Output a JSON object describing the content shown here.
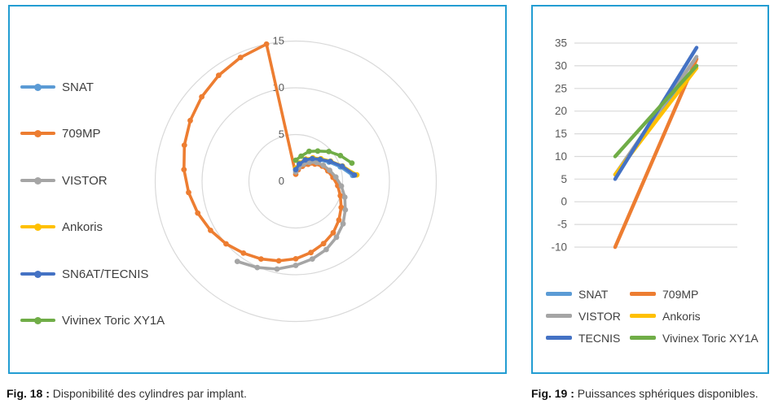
{
  "accent_color": "#239DD2",
  "grid_color": "#D9D9D9",
  "axis_text_color": "#595959",
  "fig18": {
    "caption_label": "Fig. 18 :",
    "caption_text": " Disponibilité des cylindres par implant.",
    "legend": [
      {
        "label": "SNAT",
        "color": "#5B9BD5"
      },
      {
        "label": "709MP",
        "color": "#ED7D31"
      },
      {
        "label": "VISTOR",
        "color": "#A5A5A5"
      },
      {
        "label": "Ankoris",
        "color": "#FFC000"
      },
      {
        "label": "SN6AT/TECNIS",
        "color": "#4472C4"
      },
      {
        "label": "Vivinex Toric XY1A",
        "color": "#70AD47"
      }
    ]
  },
  "fig19": {
    "caption_label": "Fig. 19 :",
    "caption_text": " Puissances sphériques disponibles.",
    "legend": [
      {
        "label": "SNAT",
        "color": "#5B9BD5"
      },
      {
        "label": "709MP",
        "color": "#ED7D31"
      },
      {
        "label": "VISTOR",
        "color": "#A5A5A5"
      },
      {
        "label": "Ankoris",
        "color": "#FFC000"
      },
      {
        "label": "TECNIS",
        "color": "#4472C4"
      },
      {
        "label": "Vivinex Toric XY1A",
        "color": "#70AD47"
      }
    ]
  },
  "chart_data": [
    {
      "type": "radar",
      "title": "Disponibilité des cylindres par implant",
      "radial_axis_ticks": [
        0,
        5,
        10,
        15
      ],
      "r_max": 15,
      "angle_step_deg": 12,
      "direction": "clockwise",
      "start_angle_deg": 0,
      "grid": true,
      "series": [
        {
          "name": "SNAT",
          "color": "#5B9BD5",
          "closed": false,
          "values": [
            1.2,
            1.8,
            2.4,
            2.9,
            3.4,
            4.1,
            5.0,
            6.1
          ]
        },
        {
          "name": "709MP",
          "color": "#ED7D31",
          "closed": true,
          "values": [
            0.75,
            1.25,
            1.75,
            2.25,
            2.75,
            3.25,
            3.6,
            4.0,
            4.5,
            5.0,
            5.6,
            6.2,
            6.8,
            7.3,
            7.8,
            8.3,
            8.7,
            9.1,
            9.5,
            10.0,
            10.5,
            11.0,
            11.5,
            12.0,
            12.5,
            13.0,
            13.5,
            14.0,
            14.5,
            15.0
          ]
        },
        {
          "name": "VISTOR",
          "color": "#A5A5A5",
          "closed": false,
          "values": [
            1.0,
            1.5,
            2.0,
            2.5,
            3.0,
            3.4,
            3.8,
            4.3,
            4.9,
            5.5,
            6.1,
            6.8,
            7.4,
            8.0,
            8.5,
            9.0,
            9.6,
            10.1,
            10.6
          ]
        },
        {
          "name": "Ankoris",
          "color": "#FFC000",
          "closed": false,
          "values": [
            1.4,
            2.0,
            2.6,
            3.1,
            3.6,
            4.3,
            5.25,
            6.55
          ]
        },
        {
          "name": "SN6AT/TECNIS",
          "color": "#4472C4",
          "closed": false,
          "values": [
            1.25,
            1.9,
            2.5,
            3.0,
            3.5,
            4.25,
            5.2,
            6.3
          ]
        },
        {
          "name": "Vivinex Toric XY1A",
          "color": "#70AD47",
          "closed": false,
          "values": [
            2.25,
            2.75,
            3.5,
            4.0,
            4.75,
            5.5,
            6.3
          ]
        }
      ]
    },
    {
      "type": "line",
      "title": "Puissances sphériques disponibles",
      "x_points": 2,
      "x_labels": [],
      "ylim": [
        -10,
        35
      ],
      "yticks": [
        35,
        30,
        25,
        20,
        15,
        10,
        5,
        0,
        -5,
        -10
      ],
      "grid": true,
      "series": [
        {
          "name": "SNAT",
          "color": "#5B9BD5",
          "values": [
            6,
            30
          ]
        },
        {
          "name": "709MP",
          "color": "#ED7D31",
          "values": [
            -10,
            31.5
          ]
        },
        {
          "name": "VISTOR",
          "color": "#A5A5A5",
          "values": [
            6,
            32
          ]
        },
        {
          "name": "Ankoris",
          "color": "#FFC000",
          "values": [
            6,
            29.5
          ]
        },
        {
          "name": "TECNIS",
          "color": "#4472C4",
          "values": [
            5,
            34
          ]
        },
        {
          "name": "Vivinex Toric XY1A",
          "color": "#70AD47",
          "values": [
            10,
            30
          ]
        }
      ]
    }
  ]
}
